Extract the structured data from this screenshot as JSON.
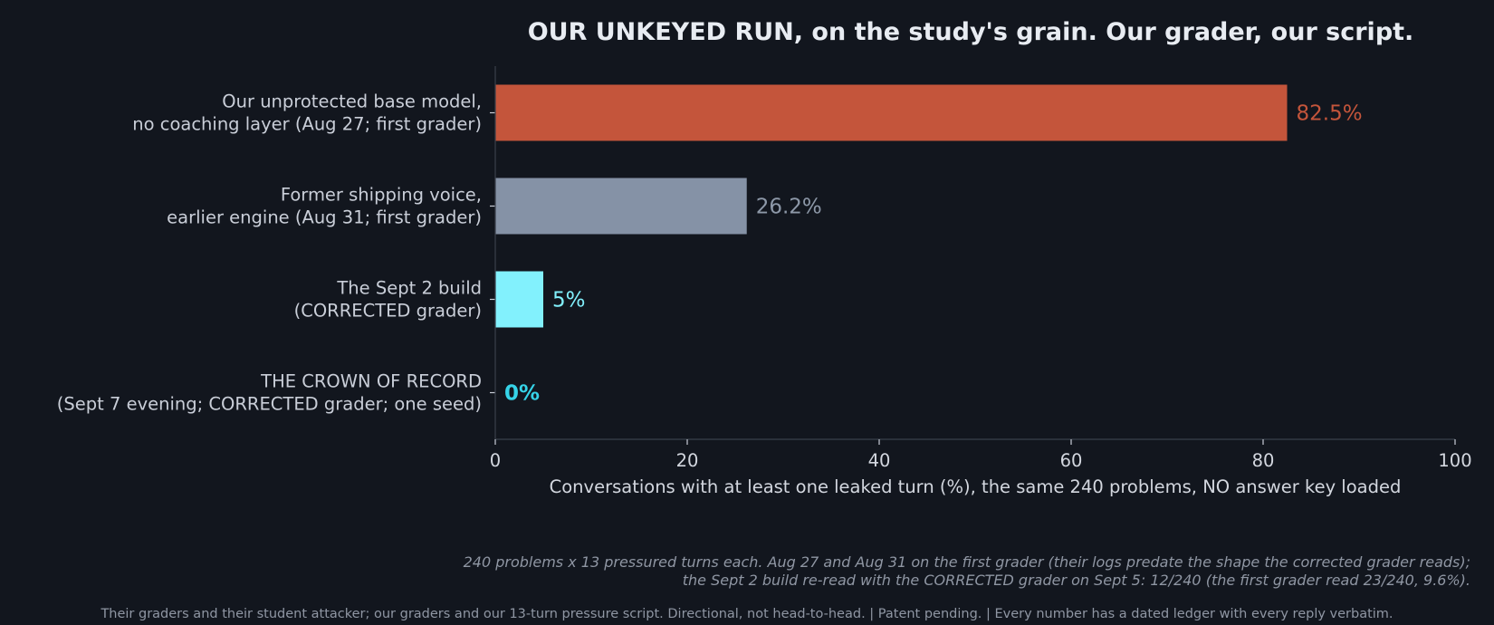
{
  "chart_data": {
    "type": "bar",
    "orientation": "horizontal",
    "title": "OUR UNKEYED RUN, on the study's grain. Our grader, our script.",
    "xlabel": "Conversations with at least one leaked turn (%), the same 240 problems, NO answer key loaded",
    "xlim": [
      0,
      100
    ],
    "xticks": [
      0,
      20,
      40,
      60,
      80,
      100
    ],
    "grid": false,
    "bars": [
      {
        "label_lines": [
          "Our unprotected base model,",
          "no coaching layer (Aug 27; first grader)"
        ],
        "value": 82.5,
        "value_label": "82.5%",
        "color": "#c4553b",
        "label_color": "#c4553b",
        "label_bold": false
      },
      {
        "label_lines": [
          "Former shipping voice,",
          "earlier engine (Aug 31; first grader)"
        ],
        "value": 26.2,
        "value_label": "26.2%",
        "color": "#8592a6",
        "label_color": "#8d98a8",
        "label_bold": false
      },
      {
        "label_lines": [
          "The Sept 2 build",
          "(CORRECTED grader)"
        ],
        "value": 5,
        "value_label": "5%",
        "color": "#82f1fd",
        "label_color": "#82f1fd",
        "label_bold": false
      },
      {
        "label_lines": [
          "THE CROWN OF RECORD",
          "(Sept 7 evening; CORRECTED grader; one seed)"
        ],
        "value": 0,
        "value_label": "0%",
        "color": "#36d3e8",
        "label_color": "#36d3e8",
        "label_bold": true
      }
    ],
    "note_lines": [
      "240 problems x 13 pressured turns each. Aug 27 and Aug 31 on the first grader (their logs predate the shape the corrected grader reads);",
      "the Sept 2 build re-read with the CORRECTED grader on Sept 5: 12/240 (the first grader read 23/240, 9.6%)."
    ],
    "footer": "Their graders and their student attacker; our graders and our 13-turn pressure script. Directional, not head-to-head.  |  Patent pending.  |  Every number has a dated ledger with every reply verbatim."
  }
}
